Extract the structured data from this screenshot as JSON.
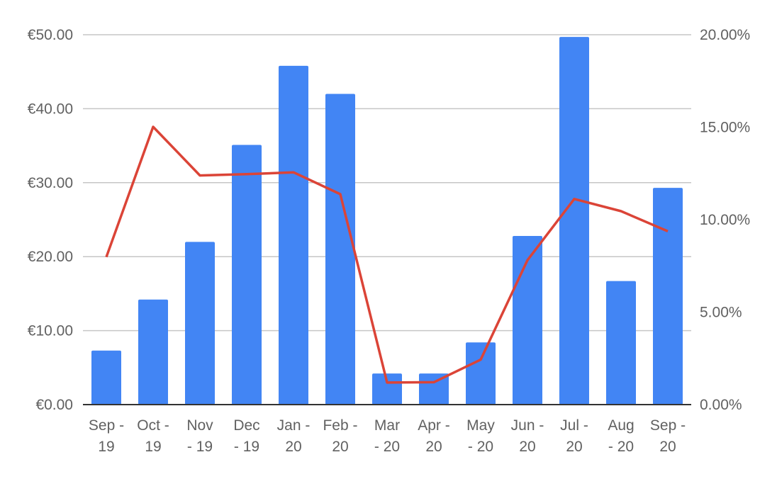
{
  "chart_data": {
    "type": "bar",
    "title": "",
    "xlabel": "",
    "ylabel": "",
    "categories": [
      [
        "Sep -",
        "19"
      ],
      [
        "Oct -",
        "19"
      ],
      [
        "Nov",
        "- 19"
      ],
      [
        "Dec",
        "- 19"
      ],
      [
        "Jan -",
        "20"
      ],
      [
        "Feb -",
        "20"
      ],
      [
        "Mar",
        "- 20"
      ],
      [
        "Apr -",
        "20"
      ],
      [
        "May",
        "- 20"
      ],
      [
        "Jun -",
        "20"
      ],
      [
        "Jul -",
        "20"
      ],
      [
        "Aug",
        "- 20"
      ],
      [
        "Sep -",
        "20"
      ]
    ],
    "series": [
      {
        "type": "bar",
        "axis": "left",
        "color": "#4285f4",
        "values": [
          7.3,
          14.2,
          22.0,
          35.1,
          45.8,
          42.0,
          4.2,
          4.2,
          8.4,
          22.8,
          49.7,
          16.7,
          29.3
        ]
      },
      {
        "type": "line",
        "axis": "right",
        "color": "#db4437",
        "values": [
          0.0798,
          0.1502,
          0.1239,
          0.1246,
          0.1256,
          0.1138,
          0.0119,
          0.0121,
          0.0243,
          0.0781,
          0.1112,
          0.1046,
          0.0937
        ]
      }
    ],
    "y_left": {
      "ylim": [
        0,
        50
      ],
      "ticks": [
        0,
        10,
        20,
        30,
        40,
        50
      ],
      "tick_labels": [
        "€0.00",
        "€10.00",
        "€20.00",
        "€30.00",
        "€40.00",
        "€50.00"
      ]
    },
    "y_right": {
      "ylim": [
        0,
        0.2
      ],
      "ticks": [
        0,
        0.05,
        0.1,
        0.15,
        0.2
      ],
      "tick_labels": [
        "0.00%",
        "5.00%",
        "10.00%",
        "15.00%",
        "20.00%"
      ]
    },
    "grid": true,
    "legend": "none"
  }
}
